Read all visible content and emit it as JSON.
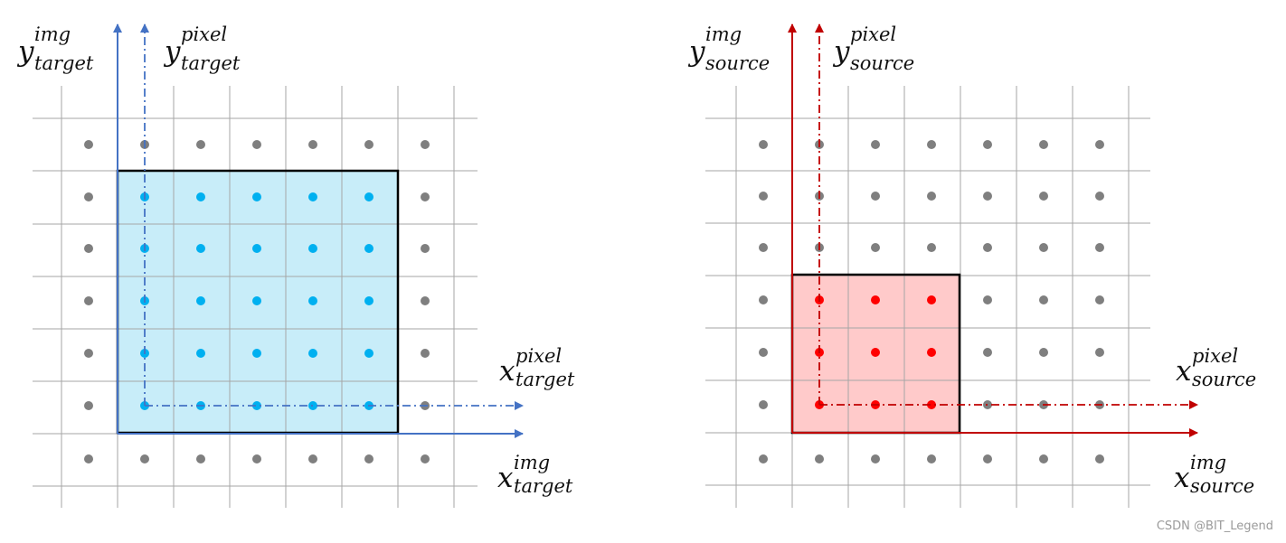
{
  "colors": {
    "grid": "#a6a6a6",
    "gray_dot": "#7f7f7f",
    "target_axis": "#4472c4",
    "target_fill": "#c8edf9",
    "target_dot": "#00b0f0",
    "source_axis": "#c00000",
    "source_fill": "#ffcaca",
    "source_dot": "#ff0000",
    "box_border": "#000000"
  },
  "labels": {
    "target_y_img": {
      "base": "y",
      "sup": "img",
      "sub": "target"
    },
    "target_y_pixel": {
      "base": "y",
      "sup": "pixel",
      "sub": "target"
    },
    "target_x_pixel": {
      "base": "x",
      "sup": "pixel",
      "sub": "target"
    },
    "target_x_img": {
      "base": "x",
      "sup": "img",
      "sub": "target"
    },
    "source_y_img": {
      "base": "y",
      "sup": "img",
      "sub": "source"
    },
    "source_y_pixel": {
      "base": "y",
      "sup": "pixel",
      "sub": "source"
    },
    "source_x_pixel": {
      "base": "x",
      "sup": "pixel",
      "sub": "source"
    },
    "source_x_img": {
      "base": "x",
      "sup": "img",
      "sub": "source"
    }
  },
  "watermark": "CSDN @BIT_Legend"
}
